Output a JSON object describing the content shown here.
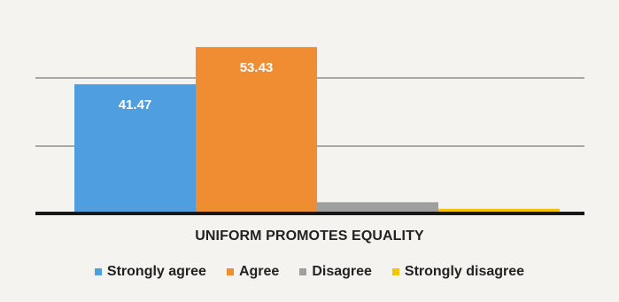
{
  "chart_data": {
    "type": "bar",
    "title": "UNIFORM PROMOTES EQUALITY",
    "categories": [
      "Strongly agree",
      "Agree",
      "Disagree",
      "Strongly disagree"
    ],
    "values": [
      41.47,
      53.43,
      3.6,
      1.5
    ],
    "data_labels": [
      "41.47",
      "53.43",
      "",
      ""
    ],
    "colors": [
      "#4f9fe0",
      "#f08d32",
      "#9f9f9f",
      "#f1c600"
    ],
    "ylim": [
      0,
      60
    ],
    "grid": true,
    "legend_position": "bottom"
  }
}
